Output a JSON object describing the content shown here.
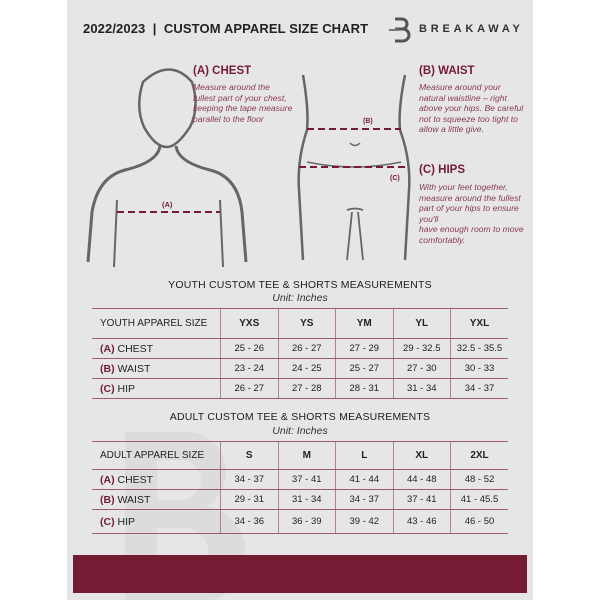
{
  "header": {
    "title": "2022/2023  |  CUSTOM APPAREL SIZE CHART",
    "brand": "BREAKAWAY",
    "logo_letter": "B"
  },
  "colors": {
    "accent": "#731c33",
    "background": "#e6e6e8"
  },
  "measures": {
    "chest": {
      "title": "(A) CHEST",
      "marker": "(A)",
      "desc": "Measure around the fullest part of your chest, keeping the tape measure parallel to the floor"
    },
    "waist": {
      "title": "(B) WAIST",
      "marker": "(B)",
      "desc": "Measure around your natural waistline – right above your hips. Be careful not to squeeze too tight to allow a little give."
    },
    "hips": {
      "title": "(C) HIPS",
      "marker": "(C)",
      "desc_1": "With your feet together, measure around the fullest part of your hips to ensure you'll",
      "desc_2": "have enough room to move comfortably."
    }
  },
  "youth": {
    "title": "YOUTH CUSTOM TEE & SHORTS MEASUREMENTS",
    "unit": "Unit: Inches",
    "header": [
      "YOUTH APPAREL SIZE",
      "YXS",
      "YS",
      "YM",
      "YL",
      "YXL"
    ],
    "rows": [
      {
        "code": "(A)",
        "name": "CHEST",
        "values": [
          "25 - 26",
          "26 - 27",
          "27 - 29",
          "29 - 32.5",
          "32.5 - 35.5"
        ]
      },
      {
        "code": "(B)",
        "name": "WAIST",
        "values": [
          "23 - 24",
          "24 - 25",
          "25 - 27",
          "27 - 30",
          "30 - 33"
        ]
      },
      {
        "code": "(C)",
        "name": "HIP",
        "values": [
          "26 - 27",
          "27 - 28",
          "28 - 31",
          "31 - 34",
          "34 - 37"
        ]
      }
    ]
  },
  "adult": {
    "title": "ADULT CUSTOM TEE & SHORTS MEASUREMENTS",
    "unit": "Unit: Inches",
    "header": [
      "ADULT APPAREL SIZE",
      "S",
      "M",
      "L",
      "XL",
      "2XL"
    ],
    "rows": [
      {
        "code": "(A)",
        "name": "CHEST",
        "values": [
          "34 - 37",
          "37 - 41",
          "41 - 44",
          "44 - 48",
          "48 - 52"
        ]
      },
      {
        "code": "(B)",
        "name": "WAIST",
        "values": [
          "29 - 31",
          "31 - 34",
          "34 - 37",
          "37 - 41",
          "41 - 45.5"
        ]
      },
      {
        "code": "(C)",
        "name": "HIP",
        "values": [
          "34 - 36",
          "36 - 39",
          "39 - 42",
          "43 - 46",
          "46 - 50"
        ]
      }
    ]
  }
}
